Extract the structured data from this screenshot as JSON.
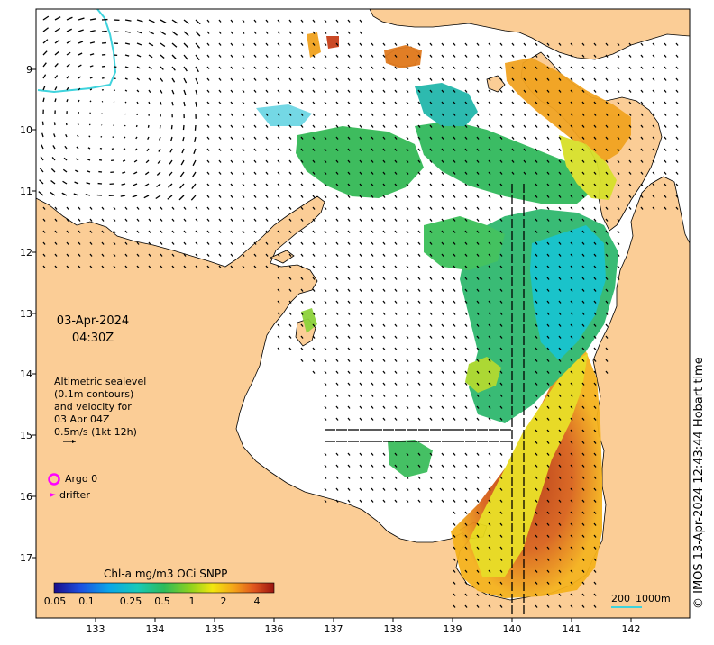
{
  "map": {
    "date": "03-Apr-2024",
    "time": "04:30Z",
    "lat_ticks": [
      "9",
      "10",
      "11",
      "12",
      "13",
      "14",
      "15",
      "16",
      "17"
    ],
    "lon_ticks": [
      "133",
      "134",
      "135",
      "136",
      "137",
      "138",
      "139",
      "140",
      "141",
      "142"
    ],
    "lat_range": [
      -17.8,
      -8.0
    ],
    "lon_range": [
      132.0,
      143.0
    ],
    "colors": {
      "land": "#fbcd96",
      "ocean": "#ffffff",
      "coast": "#000000",
      "isobath": "#3fd3dd",
      "vector": "#000000"
    }
  },
  "legend": {
    "altimetry_lines": [
      "Altimetric sealevel",
      "(0.1m contours)",
      "and velocity for",
      "03 Apr 04Z",
      "0.5m/s (1kt 12h)"
    ],
    "argo_label": "Argo 0",
    "drifter_label": "drifter",
    "argo_color": "#ff00ff",
    "drifter_color": "#ff00ff"
  },
  "colorbar": {
    "title": "Chl-a mg/m3 OCi SNPP",
    "ticks": [
      "0.05",
      "0.1",
      "0.25",
      "0.5",
      "1",
      "2",
      "4"
    ],
    "scale": "log"
  },
  "scalebar": {
    "label_left": "200",
    "label_right": "1000m"
  },
  "credit": "© IMOS 13-Apr-2024 12:43:44 Hobart time"
}
